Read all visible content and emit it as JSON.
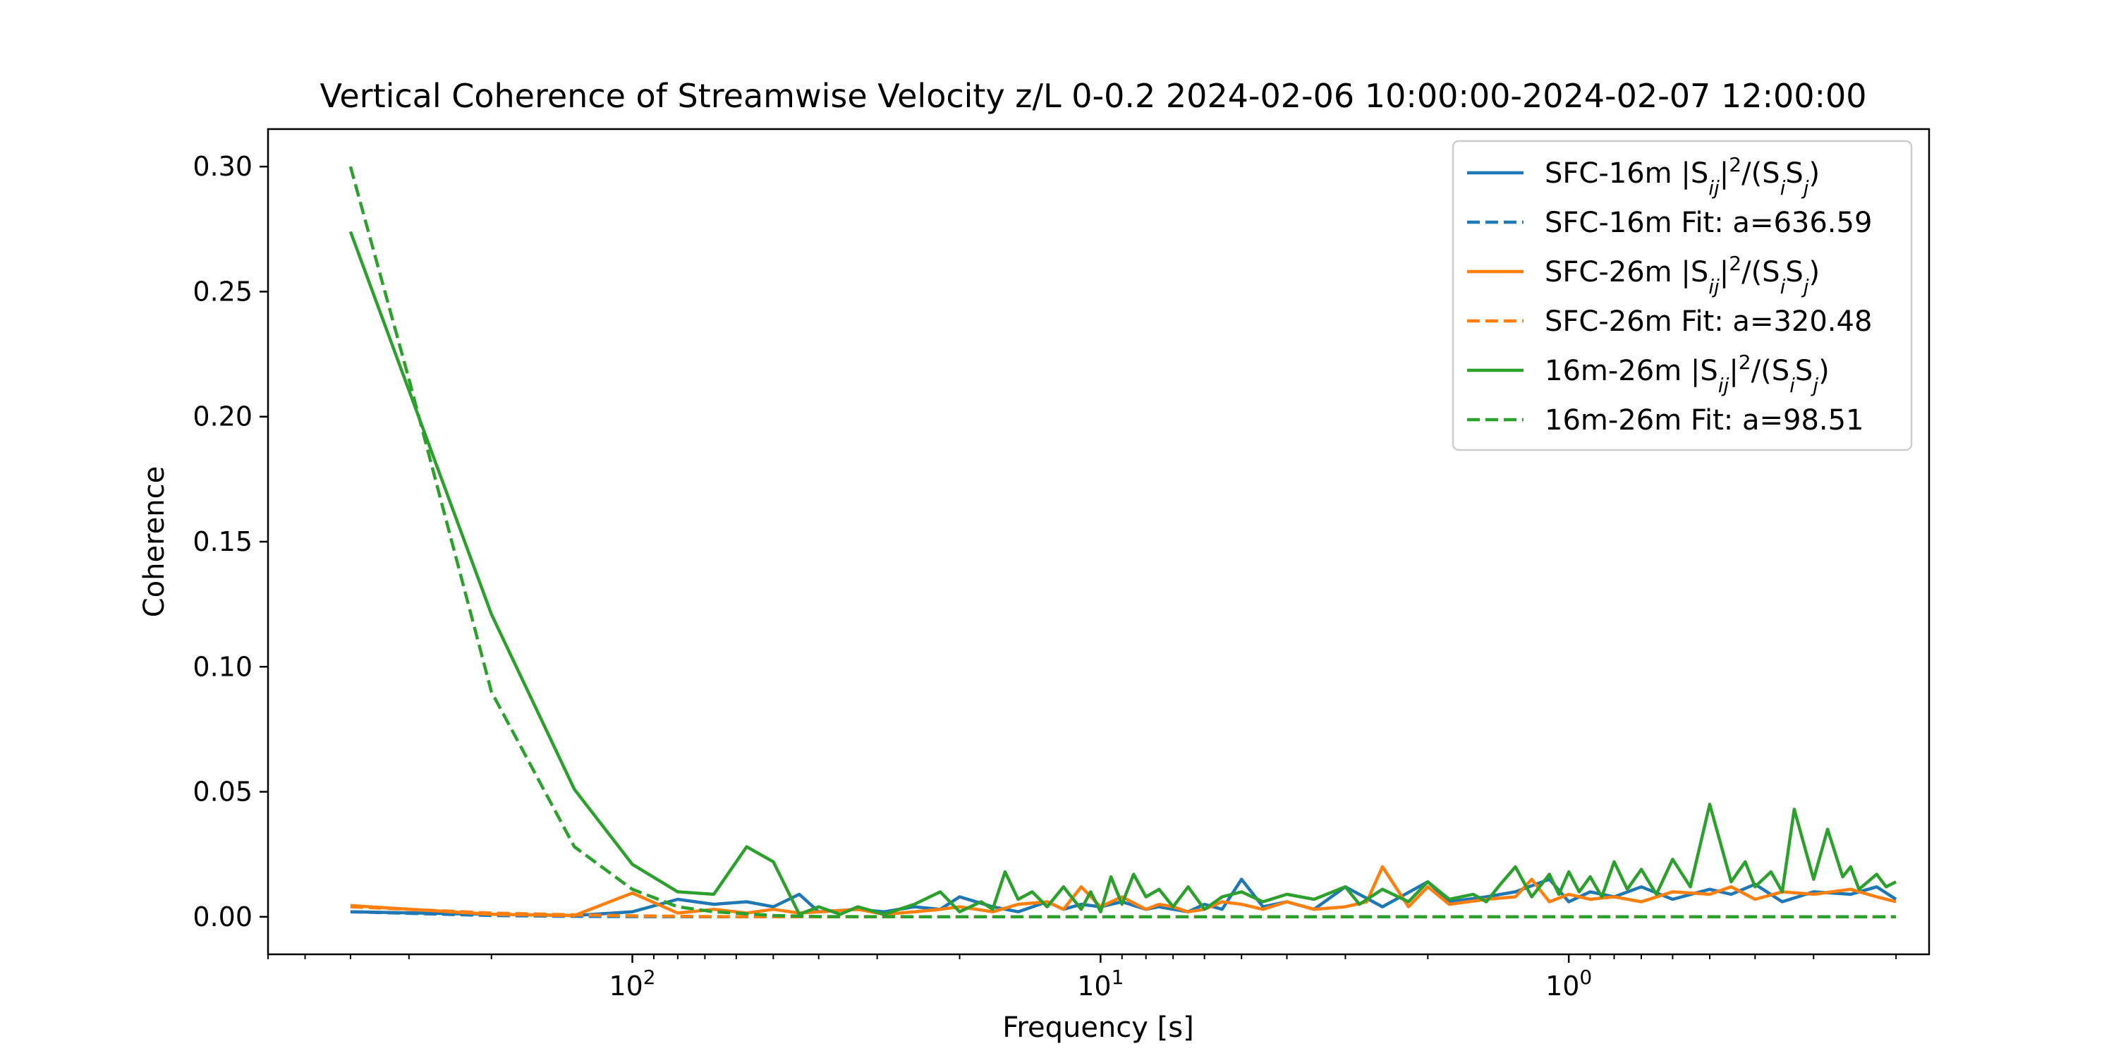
{
  "chart_data": {
    "type": "line",
    "title": "Vertical Coherence of Streamwise Velocity z/L 0-0.2 2024-02-06 10:00:00-2024-02-07 12:00:00",
    "xlabel": "Frequency [s]",
    "ylabel": "Coherence",
    "x_scale": "log",
    "x_reversed": true,
    "xlim": [
      600,
      0.17
    ],
    "ylim": [
      -0.015,
      0.315
    ],
    "x_ticks": [
      {
        "value": 100,
        "base": "10",
        "exp": "2"
      },
      {
        "value": 10,
        "base": "10",
        "exp": "1"
      },
      {
        "value": 1,
        "base": "10",
        "exp": "0"
      }
    ],
    "y_ticks": [
      {
        "value": 0.0,
        "label": "0.00"
      },
      {
        "value": 0.05,
        "label": "0.05"
      },
      {
        "value": 0.1,
        "label": "0.10"
      },
      {
        "value": 0.15,
        "label": "0.15"
      },
      {
        "value": 0.2,
        "label": "0.20"
      },
      {
        "value": 0.25,
        "label": "0.25"
      },
      {
        "value": 0.3,
        "label": "0.30"
      }
    ],
    "grid": false,
    "legend_position": "top-right",
    "series": [
      {
        "pair": "SFC-16m",
        "kind": "measured",
        "color": "#1f77b4",
        "style": "solid",
        "x": [
          400,
          200,
          133,
          100,
          80,
          67,
          57,
          50,
          44,
          40,
          33,
          29,
          25,
          22,
          20,
          17,
          15,
          13,
          12,
          11,
          10,
          9,
          8,
          7.5,
          7,
          6.5,
          6,
          5.5,
          5,
          4.5,
          4,
          3.5,
          3,
          2.5,
          2,
          1.8,
          1.5,
          1.3,
          1.1,
          1,
          0.9,
          0.8,
          0.7,
          0.6,
          0.5,
          0.45,
          0.4,
          0.35,
          0.3,
          0.25,
          0.22,
          0.2
        ],
        "y": [
          0.002,
          0.001,
          0.0005,
          0.002,
          0.007,
          0.005,
          0.006,
          0.004,
          0.009,
          0.002,
          0.003,
          0.002,
          0.004,
          0.003,
          0.008,
          0.004,
          0.002,
          0.006,
          0.003,
          0.005,
          0.004,
          0.006,
          0.003,
          0.004,
          0.003,
          0.002,
          0.005,
          0.003,
          0.015,
          0.004,
          0.006,
          0.003,
          0.012,
          0.004,
          0.014,
          0.006,
          0.008,
          0.01,
          0.015,
          0.006,
          0.01,
          0.008,
          0.012,
          0.007,
          0.011,
          0.009,
          0.013,
          0.006,
          0.01,
          0.009,
          0.012,
          0.007
        ]
      },
      {
        "pair": "SFC-16m",
        "kind": "fit",
        "a": 636.59,
        "color": "#1f77b4",
        "style": "dashed",
        "x": [
          400,
          200,
          133,
          100,
          67,
          50,
          20,
          10,
          1,
          0.2
        ],
        "y": [
          0.002,
          0.0005,
          0.0002,
          0.0001,
          0,
          0,
          0,
          0,
          0,
          0
        ]
      },
      {
        "pair": "SFC-26m",
        "kind": "measured",
        "color": "#ff7f0e",
        "style": "solid",
        "x": [
          400,
          200,
          133,
          100,
          80,
          67,
          57,
          50,
          44,
          40,
          33,
          29,
          25,
          22,
          20,
          17,
          15,
          13,
          12,
          11,
          10,
          9,
          8,
          7.5,
          7,
          6.5,
          6,
          5.5,
          5,
          4.5,
          4,
          3.5,
          3,
          2.7,
          2.5,
          2.2,
          2,
          1.8,
          1.5,
          1.3,
          1.2,
          1.1,
          1,
          0.9,
          0.8,
          0.7,
          0.6,
          0.5,
          0.45,
          0.4,
          0.35,
          0.3,
          0.25,
          0.22,
          0.2
        ],
        "y": [
          0.0045,
          0.001,
          0.0005,
          0.0095,
          0.0015,
          0.003,
          0.0015,
          0.003,
          0.0015,
          0.002,
          0.003,
          0.001,
          0.002,
          0.003,
          0.004,
          0.002,
          0.005,
          0.006,
          0.003,
          0.012,
          0.004,
          0.008,
          0.003,
          0.005,
          0.004,
          0.002,
          0.003,
          0.006,
          0.005,
          0.003,
          0.006,
          0.003,
          0.004,
          0.006,
          0.02,
          0.004,
          0.012,
          0.005,
          0.007,
          0.008,
          0.015,
          0.006,
          0.009,
          0.007,
          0.008,
          0.006,
          0.01,
          0.009,
          0.012,
          0.007,
          0.01,
          0.009,
          0.011,
          0.008,
          0.006
        ]
      },
      {
        "pair": "SFC-26m",
        "kind": "fit",
        "a": 320.48,
        "color": "#ff7f0e",
        "style": "dashed",
        "x": [
          400,
          200,
          133,
          100,
          80,
          67,
          50,
          20,
          10,
          1,
          0.2
        ],
        "y": [
          0.004,
          0.0015,
          0.0008,
          0.0004,
          0.0002,
          0.0001,
          0,
          0,
          0,
          0,
          0
        ]
      },
      {
        "pair": "16m-26m",
        "kind": "measured",
        "color": "#2ca02c",
        "style": "solid",
        "x": [
          400,
          200,
          133,
          100,
          80,
          67,
          57,
          50,
          44,
          40,
          36,
          33,
          29,
          25,
          22,
          20,
          18,
          17,
          16,
          15,
          14,
          13,
          12,
          11,
          10.5,
          10,
          9.5,
          9,
          8.5,
          8,
          7.5,
          7,
          6.5,
          6,
          5.5,
          5,
          4.5,
          4,
          3.5,
          3,
          2.8,
          2.5,
          2.2,
          2,
          1.8,
          1.6,
          1.5,
          1.4,
          1.3,
          1.2,
          1.1,
          1.05,
          1,
          0.95,
          0.9,
          0.85,
          0.8,
          0.75,
          0.7,
          0.65,
          0.6,
          0.55,
          0.5,
          0.45,
          0.42,
          0.4,
          0.37,
          0.35,
          0.33,
          0.3,
          0.28,
          0.26,
          0.25,
          0.24,
          0.22,
          0.21,
          0.2
        ],
        "y": [
          0.274,
          0.121,
          0.051,
          0.021,
          0.01,
          0.009,
          0.028,
          0.022,
          0.001,
          0.004,
          0.001,
          0.004,
          0.001,
          0.005,
          0.01,
          0.002,
          0.006,
          0.003,
          0.018,
          0.007,
          0.01,
          0.004,
          0.012,
          0.003,
          0.01,
          0.002,
          0.016,
          0.005,
          0.017,
          0.008,
          0.011,
          0.004,
          0.012,
          0.003,
          0.008,
          0.01,
          0.006,
          0.009,
          0.007,
          0.012,
          0.005,
          0.011,
          0.006,
          0.014,
          0.007,
          0.009,
          0.006,
          0.013,
          0.02,
          0.008,
          0.017,
          0.009,
          0.018,
          0.01,
          0.016,
          0.008,
          0.022,
          0.011,
          0.019,
          0.009,
          0.023,
          0.012,
          0.045,
          0.014,
          0.022,
          0.012,
          0.018,
          0.01,
          0.043,
          0.015,
          0.035,
          0.016,
          0.02,
          0.011,
          0.017,
          0.012,
          0.014
        ]
      },
      {
        "pair": "16m-26m",
        "kind": "fit",
        "a": 98.51,
        "color": "#2ca02c",
        "style": "dashed",
        "x": [
          400,
          300,
          200,
          133,
          100,
          80,
          67,
          50,
          40,
          20,
          10,
          1,
          0.2
        ],
        "y": [
          0.3,
          0.215,
          0.09,
          0.028,
          0.011,
          0.004,
          0.002,
          0.0005,
          0.0001,
          0,
          0,
          0,
          0
        ]
      }
    ],
    "legend": [
      {
        "prefix": "SFC-16m ",
        "kind": "ratio",
        "color": "#1f77b4",
        "style": "solid"
      },
      {
        "text": "SFC-16m Fit: a=636.59",
        "kind": "fit",
        "color": "#1f77b4",
        "style": "dashed"
      },
      {
        "prefix": "SFC-26m ",
        "kind": "ratio",
        "color": "#ff7f0e",
        "style": "solid"
      },
      {
        "text": "SFC-26m Fit: a=320.48",
        "kind": "fit",
        "color": "#ff7f0e",
        "style": "dashed"
      },
      {
        "prefix": "16m-26m ",
        "kind": "ratio",
        "color": "#2ca02c",
        "style": "solid"
      },
      {
        "text": "16m-26m Fit: a=98.51",
        "kind": "fit",
        "color": "#2ca02c",
        "style": "dashed"
      }
    ],
    "legend_ratio_text": {
      "open": "|S",
      "sub_ij": "ij",
      "close": "|",
      "sup": "2",
      "mid": "/(S",
      "sub_i": "i",
      "s2": "S",
      "sub_j": "j",
      "end": ")"
    }
  }
}
